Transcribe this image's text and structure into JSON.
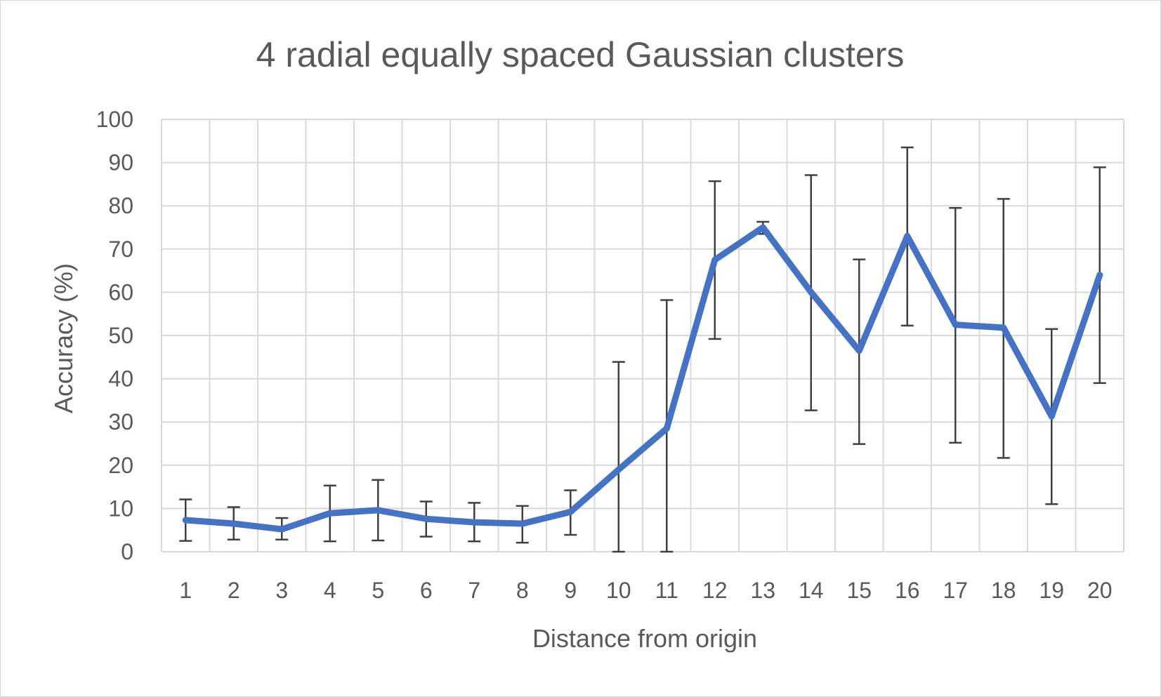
{
  "chart_data": {
    "type": "line",
    "title": "4 radial equally spaced Gaussian clusters",
    "xlabel": "Distance from origin",
    "ylabel": "Accuracy (%)",
    "categories": [
      "1",
      "2",
      "3",
      "4",
      "5",
      "6",
      "7",
      "8",
      "9",
      "10",
      "11",
      "12",
      "13",
      "14",
      "15",
      "16",
      "17",
      "18",
      "19",
      "20"
    ],
    "ylim": [
      0,
      100
    ],
    "yticks": [
      "0",
      "10",
      "20",
      "30",
      "40",
      "50",
      "60",
      "70",
      "80",
      "90",
      "100"
    ],
    "grid": true,
    "legend": "none",
    "series": [
      {
        "values": [
          7.3,
          6.5,
          5.2,
          8.9,
          9.6,
          7.6,
          6.8,
          6.5,
          9.2,
          19,
          28.5,
          67.5,
          75,
          60,
          46.5,
          73,
          52.5,
          51.8,
          31.3,
          64
        ],
        "error_low": [
          2.5,
          2.8,
          2.8,
          2.4,
          2.6,
          3.5,
          2.4,
          2.1,
          3.9,
          0,
          0,
          49.2,
          73.5,
          32.7,
          24.9,
          52.3,
          25.2,
          21.7,
          11,
          39
        ],
        "error_high": [
          12.1,
          10.3,
          7.8,
          15.3,
          16.6,
          11.6,
          11.3,
          10.6,
          14.2,
          43.9,
          58.2,
          85.7,
          76.3,
          87.1,
          67.6,
          93.5,
          79.5,
          81.6,
          51.5,
          88.9
        ]
      }
    ],
    "colors": {
      "line": "#4472c4",
      "error_bar": "#404040",
      "grid": "#d9d9d9",
      "text": "#595959"
    }
  }
}
